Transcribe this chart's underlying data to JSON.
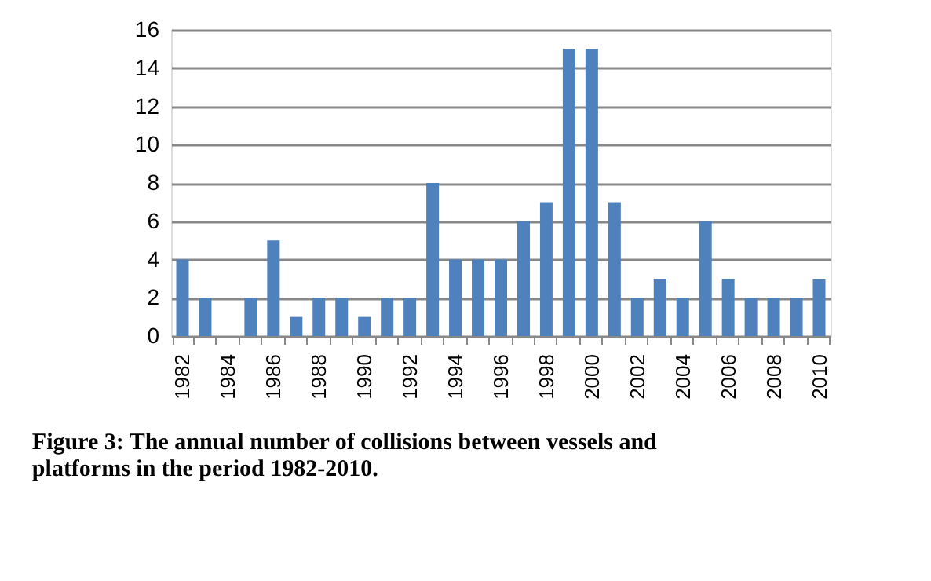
{
  "chart_data": {
    "type": "bar",
    "categories": [
      "1982",
      null,
      "1984",
      null,
      "1986",
      null,
      "1988",
      null,
      "1990",
      null,
      "1992",
      null,
      "1994",
      null,
      "1996",
      null,
      "1998",
      null,
      "2000",
      null,
      "2002",
      null,
      "2004",
      null,
      "2006",
      null,
      "2008",
      null,
      "2010"
    ],
    "values": [
      4,
      2,
      0,
      2,
      5,
      1,
      2,
      2,
      1,
      2,
      2,
      8,
      4,
      4,
      4,
      6,
      7,
      15,
      15,
      7,
      2,
      3,
      2,
      6,
      3,
      2,
      2,
      2,
      3
    ],
    "color": "#4f81bd",
    "ylim": [
      0,
      16
    ],
    "yticks": [
      0,
      2,
      4,
      6,
      8,
      10,
      12,
      14,
      16
    ],
    "grid": "y",
    "annotations": [
      "Figure 3: The annual number of collisions between vessels and platforms in the period 1982-2010."
    ]
  }
}
